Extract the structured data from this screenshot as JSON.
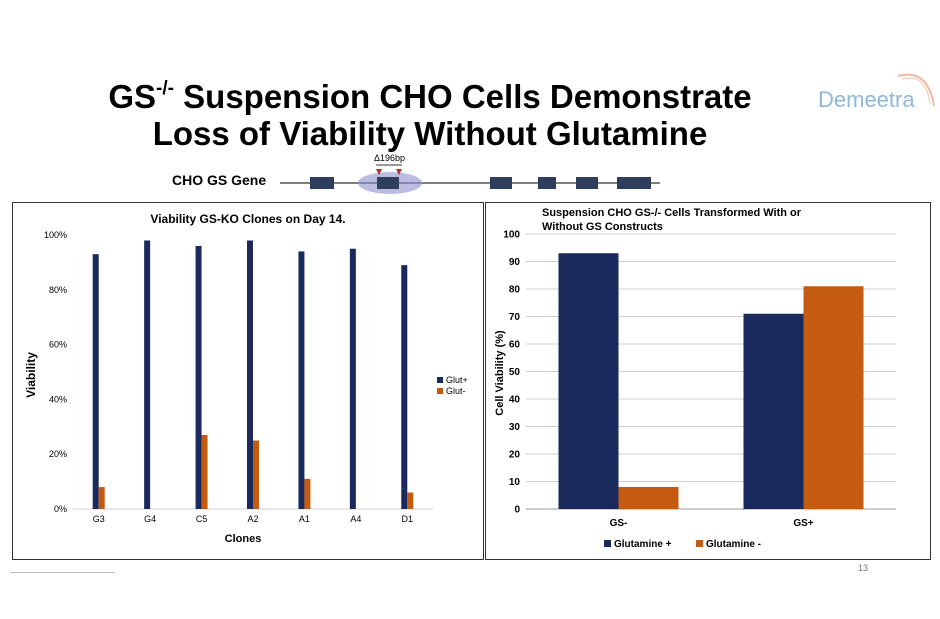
{
  "slide": {
    "title_main": "GS",
    "title_sup": "-/-",
    "title_rest_line1": " Suspension CHO Cells Demonstrate",
    "title_line2": "Loss of Viability Without Glutamine",
    "logo_text": "Demeetra",
    "page_number": "13"
  },
  "gene": {
    "label": "CHO GS Gene",
    "deletion_label": "Δ196bp"
  },
  "colors": {
    "navy": "#1b2a5c",
    "orange": "#c55a11",
    "exon": "#2e3d5c",
    "logo": "#8fb7d9"
  },
  "chart_data": [
    {
      "type": "bar",
      "title": "Viability GS-KO Clones on Day 14.",
      "xlabel": "Clones",
      "ylabel": "Viability",
      "categories": [
        "G3",
        "G4",
        "C5",
        "A2",
        "A1",
        "A4",
        "D1"
      ],
      "series": [
        {
          "name": "Glut+",
          "values": [
            93,
            98,
            96,
            98,
            94,
            95,
            89
          ]
        },
        {
          "name": "Glut-",
          "values": [
            8,
            0,
            27,
            25,
            11,
            0,
            6
          ]
        }
      ],
      "ylim": [
        0,
        100
      ],
      "yticks": [
        "0%",
        "20%",
        "40%",
        "60%",
        "80%",
        "100%"
      ],
      "grid": false,
      "legend": "right"
    },
    {
      "type": "bar",
      "title_line1": "Suspension CHO GS-/- Cells Transformed With or",
      "title_line2": "Without GS Constructs",
      "xlabel": "",
      "ylabel": "Cell Viability (%)",
      "categories": [
        "GS-",
        "GS+"
      ],
      "series": [
        {
          "name": "Glutamine +",
          "values": [
            93,
            71
          ]
        },
        {
          "name": "Glutamine -",
          "values": [
            8,
            81
          ]
        }
      ],
      "ylim": [
        0,
        100
      ],
      "yticks": [
        "0",
        "10",
        "20",
        "30",
        "40",
        "50",
        "60",
        "70",
        "80",
        "90",
        "100"
      ],
      "grid": true,
      "legend": "bottom"
    }
  ]
}
